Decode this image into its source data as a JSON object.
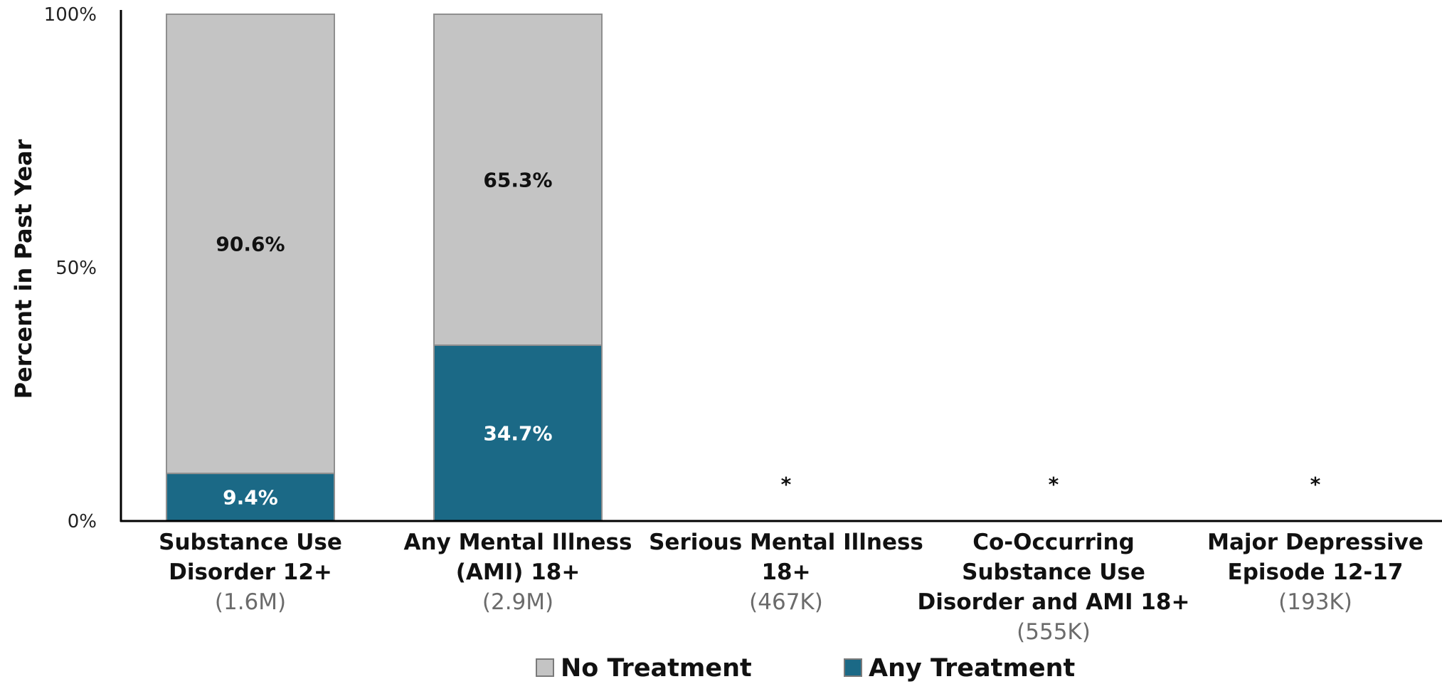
{
  "chart_data": {
    "type": "bar",
    "stacked": true,
    "ylabel": "Percent in Past Year",
    "ylim": [
      0,
      100
    ],
    "yticks": [
      {
        "value": 0,
        "label": "0%"
      },
      {
        "value": 50,
        "label": "50%"
      },
      {
        "value": 100,
        "label": "100%"
      }
    ],
    "categories": [
      {
        "lines": [
          "Substance Use",
          "Disorder 12+"
        ],
        "n": "(1.6M)"
      },
      {
        "lines": [
          "Any Mental Illness",
          "(AMI) 18+"
        ],
        "n": "(2.9M)"
      },
      {
        "lines": [
          "Serious Mental Illness",
          "18+"
        ],
        "n": "(467K)"
      },
      {
        "lines": [
          "Co-Occurring",
          "Substance Use",
          "Disorder and AMI 18+"
        ],
        "n": "(555K)"
      },
      {
        "lines": [
          "Major Depressive",
          "Episode 12-17"
        ],
        "n": "(193K)"
      }
    ],
    "series": [
      {
        "name": "Any Treatment",
        "color": "#1b6986",
        "text_color": "#ffffff",
        "values": [
          9.4,
          34.7,
          null,
          null,
          null
        ],
        "labels": [
          "9.4%",
          "34.7%",
          null,
          null,
          null
        ]
      },
      {
        "name": "No Treatment",
        "color": "#c4c4c4",
        "text_color": "#111111",
        "values": [
          90.6,
          65.3,
          null,
          null,
          null
        ],
        "labels": [
          "90.6%",
          "65.3%",
          null,
          null,
          null
        ]
      }
    ],
    "suppressed_marker": "*",
    "legend": {
      "position": "bottom",
      "order": [
        "No Treatment",
        "Any Treatment"
      ]
    },
    "grid": false
  }
}
